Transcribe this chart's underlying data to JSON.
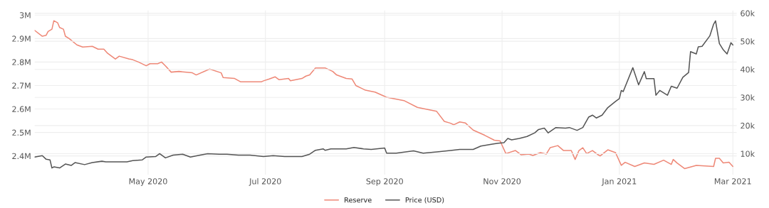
{
  "chart_data": {
    "type": "line",
    "xlim": [
      "2020-03-03",
      "2021-03-03"
    ],
    "xticks": [
      {
        "value": "2020-05-01",
        "label": "May 2020"
      },
      {
        "value": "2020-07-01",
        "label": "Jul 2020"
      },
      {
        "value": "2020-09-01",
        "label": "Sep 2020"
      },
      {
        "value": "2020-11-01",
        "label": "Nov 2020"
      },
      {
        "value": "2021-01-01",
        "label": "Jan 2021"
      },
      {
        "value": "2021-03-01",
        "label": "Mar 2021"
      }
    ],
    "ylim": [
      2320000,
      3020000
    ],
    "yticks": [
      {
        "value": 2400000,
        "label": "2.4M"
      },
      {
        "value": 2500000,
        "label": "2.5M"
      },
      {
        "value": 2600000,
        "label": "2.6M"
      },
      {
        "value": 2700000,
        "label": "2.7M"
      },
      {
        "value": 2800000,
        "label": "2.8M"
      },
      {
        "value": 2900000,
        "label": "2.9M"
      },
      {
        "value": 3000000,
        "label": "3M"
      }
    ],
    "y2lim": [
      2500,
      61000
    ],
    "y2ticks": [
      {
        "value": 10000,
        "label": "10k"
      },
      {
        "value": 20000,
        "label": "20k"
      },
      {
        "value": 30000,
        "label": "30k"
      },
      {
        "value": 40000,
        "label": "40k"
      },
      {
        "value": 50000,
        "label": "50k"
      },
      {
        "value": 60000,
        "label": "60k"
      }
    ],
    "grid": true,
    "legend": "bottom",
    "series": [
      {
        "name": "Reserve",
        "color": "#ee8877",
        "x": [
          "2020-03-03",
          "2020-03-07",
          "2020-03-09",
          "2020-03-10",
          "2020-03-12",
          "2020-03-13",
          "2020-03-15",
          "2020-03-16",
          "2020-03-18",
          "2020-03-19",
          "2020-03-21",
          "2020-03-25",
          "2020-03-28",
          "2020-04-02",
          "2020-04-05",
          "2020-04-08",
          "2020-04-10",
          "2020-04-14",
          "2020-04-16",
          "2020-04-21",
          "2020-04-23",
          "2020-04-26",
          "2020-04-30",
          "2020-05-02",
          "2020-05-06",
          "2020-05-08",
          "2020-05-10",
          "2020-05-13",
          "2020-05-17",
          "2020-05-24",
          "2020-05-26",
          "2020-06-02",
          "2020-06-08",
          "2020-06-09",
          "2020-06-15",
          "2020-06-18",
          "2020-06-23",
          "2020-06-29",
          "2020-06-30",
          "2020-07-03",
          "2020-07-06",
          "2020-07-08",
          "2020-07-13",
          "2020-07-14",
          "2020-07-20",
          "2020-07-22",
          "2020-07-24",
          "2020-07-27",
          "2020-08-01",
          "2020-08-05",
          "2020-08-07",
          "2020-08-12",
          "2020-08-15",
          "2020-08-17",
          "2020-08-22",
          "2020-08-27",
          "2020-09-02",
          "2020-09-11",
          "2020-09-18",
          "2020-09-22",
          "2020-09-28",
          "2020-10-02",
          "2020-10-05",
          "2020-10-07",
          "2020-10-10",
          "2020-10-13",
          "2020-10-17",
          "2020-10-23",
          "2020-10-28",
          "2020-10-31",
          "2020-11-03",
          "2020-11-08",
          "2020-11-11",
          "2020-11-15",
          "2020-11-17",
          "2020-11-21",
          "2020-11-24",
          "2020-11-26",
          "2020-11-30",
          "2020-12-03",
          "2020-12-07",
          "2020-12-09",
          "2020-12-11",
          "2020-12-13",
          "2020-12-15",
          "2020-12-18",
          "2020-12-21",
          "2020-12-22",
          "2020-12-26",
          "2020-12-30",
          "2021-01-02",
          "2021-01-04",
          "2021-01-09",
          "2021-01-14",
          "2021-01-19",
          "2021-01-24",
          "2021-01-28",
          "2021-01-29",
          "2021-01-31",
          "2021-02-04",
          "2021-02-10",
          "2021-02-19",
          "2021-02-20",
          "2021-02-22",
          "2021-02-24",
          "2021-02-27",
          "2021-03-01"
        ],
        "values": [
          2935000,
          2910000,
          2914000,
          2930000,
          2940000,
          2976000,
          2967000,
          2947000,
          2940000,
          2910000,
          2900000,
          2873000,
          2864000,
          2867000,
          2855000,
          2855000,
          2837000,
          2813000,
          2825000,
          2813000,
          2810000,
          2800000,
          2784000,
          2793000,
          2793000,
          2800000,
          2784000,
          2757000,
          2760000,
          2754000,
          2745000,
          2770000,
          2754000,
          2734000,
          2730000,
          2716000,
          2716000,
          2716000,
          2720000,
          2728000,
          2737000,
          2725000,
          2730000,
          2720000,
          2730000,
          2740000,
          2745000,
          2775000,
          2775000,
          2760000,
          2745000,
          2730000,
          2728000,
          2700000,
          2680000,
          2672000,
          2650000,
          2636000,
          2607000,
          2600000,
          2590000,
          2547000,
          2540000,
          2533000,
          2545000,
          2540000,
          2510000,
          2488000,
          2467000,
          2464000,
          2410000,
          2423000,
          2405000,
          2408000,
          2402000,
          2414000,
          2408000,
          2435000,
          2444000,
          2423000,
          2423000,
          2385000,
          2423000,
          2435000,
          2410000,
          2423000,
          2405000,
          2400000,
          2426000,
          2414000,
          2360000,
          2373000,
          2355000,
          2370000,
          2364000,
          2382000,
          2364000,
          2385000,
          2370000,
          2346000,
          2360000,
          2355000,
          2390000,
          2390000,
          2370000,
          2373000,
          2355000
        ]
      },
      {
        "name": "Price (USD)",
        "color": "#555555",
        "axis": "y2",
        "x": [
          "2020-03-03",
          "2020-03-07",
          "2020-03-09",
          "2020-03-11",
          "2020-03-12",
          "2020-03-13",
          "2020-03-16",
          "2020-03-19",
          "2020-03-22",
          "2020-03-24",
          "2020-03-29",
          "2020-04-02",
          "2020-04-07",
          "2020-04-09",
          "2020-04-15",
          "2020-04-20",
          "2020-04-23",
          "2020-04-28",
          "2020-04-30",
          "2020-05-05",
          "2020-05-07",
          "2020-05-10",
          "2020-05-14",
          "2020-05-19",
          "2020-05-23",
          "2020-05-28",
          "2020-06-01",
          "2020-06-07",
          "2020-06-11",
          "2020-06-17",
          "2020-06-23",
          "2020-06-30",
          "2020-07-05",
          "2020-07-11",
          "2020-07-20",
          "2020-07-24",
          "2020-07-27",
          "2020-07-31",
          "2020-08-01",
          "2020-08-04",
          "2020-08-12",
          "2020-08-16",
          "2020-08-21",
          "2020-08-25",
          "2020-09-01",
          "2020-09-02",
          "2020-09-07",
          "2020-09-16",
          "2020-09-21",
          "2020-09-29",
          "2020-10-06",
          "2020-10-10",
          "2020-10-17",
          "2020-10-21",
          "2020-10-27",
          "2020-10-30",
          "2020-11-02",
          "2020-11-04",
          "2020-11-06",
          "2020-11-10",
          "2020-11-14",
          "2020-11-18",
          "2020-11-20",
          "2020-11-23",
          "2020-11-25",
          "2020-11-29",
          "2020-12-04",
          "2020-12-06",
          "2020-12-10",
          "2020-12-13",
          "2020-12-16",
          "2020-12-18",
          "2020-12-20",
          "2020-12-23",
          "2020-12-26",
          "2020-12-30",
          "2021-01-01",
          "2021-01-02",
          "2021-01-03",
          "2021-01-08",
          "2021-01-11",
          "2021-01-14",
          "2021-01-15",
          "2021-01-19",
          "2021-01-20",
          "2021-01-22",
          "2021-01-26",
          "2021-01-28",
          "2021-01-31",
          "2021-02-03",
          "2021-02-06",
          "2021-02-07",
          "2021-02-10",
          "2021-02-11",
          "2021-02-13",
          "2021-02-17",
          "2021-02-19",
          "2021-02-20",
          "2021-02-22",
          "2021-02-24",
          "2021-02-26",
          "2021-02-28",
          "2021-03-01"
        ],
        "values": [
          8800,
          9300,
          8000,
          7800,
          4900,
          5300,
          4900,
          6300,
          5800,
          6800,
          6100,
          6800,
          7300,
          7100,
          7100,
          7100,
          7500,
          7800,
          8800,
          9000,
          10000,
          8500,
          9500,
          9800,
          8800,
          9500,
          10000,
          9800,
          9800,
          9500,
          9500,
          9000,
          9300,
          9000,
          9000,
          9800,
          11200,
          11700,
          11200,
          11700,
          11700,
          12200,
          11700,
          11500,
          12000,
          10200,
          10200,
          11000,
          10200,
          10700,
          11200,
          11500,
          11500,
          12700,
          13400,
          13700,
          13900,
          15400,
          14900,
          15400,
          16100,
          17400,
          18600,
          19100,
          17400,
          19300,
          19100,
          19300,
          18300,
          19300,
          23000,
          23700,
          22700,
          23700,
          26400,
          28600,
          29600,
          32500,
          32100,
          40600,
          34500,
          39200,
          36700,
          36700,
          30800,
          32500,
          30800,
          34000,
          33300,
          37200,
          38900,
          46300,
          45500,
          48000,
          48200,
          51900,
          56100,
          57300,
          49200,
          47000,
          45500,
          49500,
          48700
        ]
      }
    ]
  }
}
